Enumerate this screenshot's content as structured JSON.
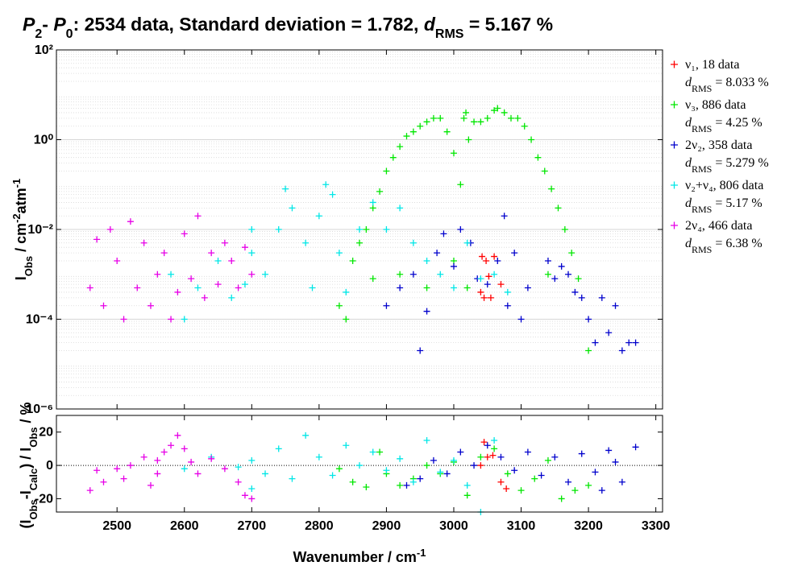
{
  "chart_data": [
    {
      "type": "scatter",
      "title_parts": [
        "P",
        "2",
        "- ",
        "P",
        "0",
        ": 2534 data, Standard deviation = 1.782, ",
        "d",
        "RMS",
        " = 5.167 %"
      ],
      "ylabel_parts": [
        "I",
        "Obs",
        " / cm",
        "-2",
        "atm",
        "-1"
      ],
      "log_y": true,
      "grid": true,
      "legend": "outside-right",
      "xlim": [
        2410,
        3310
      ],
      "xticks": [
        2500,
        2600,
        2700,
        2800,
        2900,
        3000,
        3100,
        3200,
        3300
      ],
      "ylim": [
        1e-06,
        100
      ],
      "yticks": [
        {
          "value": 1e-06,
          "label": "10⁻⁶"
        },
        {
          "value": 0.0001,
          "label": "10⁻⁴"
        },
        {
          "value": 0.01,
          "label": "10⁻²"
        },
        {
          "value": 1,
          "label": "10⁰"
        },
        {
          "value": 100,
          "label": "10²"
        }
      ],
      "series": [
        {
          "name": "ν₁, 18 data",
          "rms_parts": [
            "d",
            "RMS",
            " = 8.033 %"
          ],
          "color": "#ff0000",
          "x": [
            3042,
            3048,
            3045,
            3055,
            3052,
            3060,
            3070,
            3040
          ],
          "values": [
            0.0025,
            0.002,
            0.0003,
            0.0003,
            0.0009,
            0.0025,
            0.0006,
            0.0004
          ]
        },
        {
          "name": "ν₃, 886 data",
          "rms_parts": [
            "d",
            "RMS",
            " = 4.25 %"
          ],
          "color": "#00e600",
          "x": [
            2830,
            2840,
            2850,
            2860,
            2870,
            2880,
            2890,
            2900,
            2910,
            2920,
            2930,
            2940,
            2950,
            2960,
            2970,
            2980,
            2990,
            3000,
            3010,
            3015,
            3018,
            3022,
            3030,
            3040,
            3050,
            3060,
            3065,
            3075,
            3085,
            3095,
            3105,
            3115,
            3125,
            3135,
            3145,
            3155,
            3165,
            3175,
            3185,
            3200,
            2920,
            2960,
            3000,
            3020,
            2880,
            3140
          ],
          "values": [
            0.0002,
            0.0001,
            0.002,
            0.005,
            0.01,
            0.03,
            0.07,
            0.2,
            0.4,
            0.7,
            1.2,
            1.5,
            2,
            2.5,
            3,
            3,
            1.5,
            0.5,
            0.1,
            3,
            4,
            1,
            2.5,
            2.5,
            3,
            4.5,
            5,
            4,
            3,
            3,
            2,
            1,
            0.4,
            0.2,
            0.08,
            0.03,
            0.01,
            0.003,
            0.0008,
            2e-05,
            0.001,
            0.0005,
            0.002,
            0.0005,
            0.0008,
            0.001
          ]
        },
        {
          "name": "2ν₂, 358 data",
          "rms_parts": [
            "d",
            "RMS",
            " = 5.279 %"
          ],
          "color": "#0000cc",
          "x": [
            2900,
            2920,
            2940,
            2950,
            2960,
            2975,
            2985,
            3000,
            3010,
            3025,
            3035,
            3050,
            3065,
            3075,
            3080,
            3090,
            3100,
            3140,
            3160,
            3170,
            3180,
            3190,
            3200,
            3210,
            3220,
            3230,
            3240,
            3250,
            3260,
            3270,
            3110,
            3150
          ],
          "values": [
            0.0002,
            0.0005,
            0.001,
            2e-05,
            0.00015,
            0.003,
            0.008,
            0.0015,
            0.01,
            0.005,
            0.0008,
            0.0006,
            0.002,
            0.02,
            0.0002,
            0.003,
            0.0001,
            0.002,
            0.0015,
            0.001,
            0.0004,
            0.0003,
            0.0001,
            3e-05,
            0.0003,
            5e-05,
            0.0002,
            2e-05,
            3e-05,
            3e-05,
            0.0005,
            0.0008
          ]
        },
        {
          "name": "ν₂+ν₄, 806 data",
          "rms_parts": [
            "d",
            "RMS",
            " = 5.17 %"
          ],
          "color": "#00e6e6",
          "x": [
            2600,
            2620,
            2650,
            2670,
            2690,
            2700,
            2720,
            2740,
            2750,
            2760,
            2780,
            2790,
            2800,
            2810,
            2820,
            2830,
            2840,
            2860,
            2880,
            2900,
            2920,
            2940,
            2960,
            2980,
            3000,
            3020,
            3040,
            3060,
            3080,
            2580,
            2700
          ],
          "values": [
            0.0001,
            0.0005,
            0.002,
            0.0003,
            0.0006,
            0.003,
            0.001,
            0.01,
            0.08,
            0.03,
            0.005,
            0.0005,
            0.02,
            0.1,
            0.06,
            0.003,
            0.0004,
            0.01,
            0.04,
            0.01,
            0.03,
            0.005,
            0.002,
            0.001,
            0.0005,
            0.005,
            0.0008,
            0.001,
            0.0004,
            0.001,
            0.01
          ]
        },
        {
          "name": "2ν₄, 466 data",
          "rms_parts": [
            "d",
            "RMS",
            " = 6.38 %"
          ],
          "color": "#e600e6",
          "x": [
            2460,
            2470,
            2480,
            2490,
            2500,
            2510,
            2520,
            2530,
            2540,
            2550,
            2560,
            2570,
            2580,
            2590,
            2600,
            2610,
            2620,
            2630,
            2640,
            2650,
            2660,
            2670,
            2680,
            2690,
            2700
          ],
          "values": [
            0.0005,
            0.006,
            0.0002,
            0.01,
            0.002,
            0.0001,
            0.015,
            0.0005,
            0.005,
            0.0002,
            0.001,
            0.003,
            0.0001,
            0.0004,
            0.008,
            0.0008,
            0.02,
            0.0003,
            0.003,
            0.0006,
            0.005,
            0.002,
            0.0005,
            0.004,
            0.001
          ]
        }
      ]
    },
    {
      "type": "scatter",
      "ylabel_parts": [
        "(I",
        "Obs",
        "-I",
        "Calc",
        ") / I",
        "Obs",
        " /  %"
      ],
      "xlabel_parts": [
        "Wavenumber / cm",
        "-1"
      ],
      "zero_line": true,
      "xlim": [
        2410,
        3310
      ],
      "xticks": [
        2500,
        2600,
        2700,
        2800,
        2900,
        3000,
        3100,
        3200,
        3300
      ],
      "ylim": [
        -28,
        30
      ],
      "yticks": [
        -20,
        0,
        20
      ],
      "series": [
        {
          "color": "#ff0000",
          "x": [
            3045,
            3050,
            3058,
            3070,
            3078,
            3040
          ],
          "values": [
            14,
            5,
            6,
            -10,
            -14,
            0
          ]
        },
        {
          "color": "#00e600",
          "x": [
            2830,
            2850,
            2870,
            2890,
            2900,
            2920,
            2940,
            2960,
            2980,
            3000,
            3020,
            3040,
            3060,
            3080,
            3100,
            3120,
            3140,
            3160,
            3180,
            3200
          ],
          "values": [
            -2,
            -10,
            -13,
            8,
            -5,
            -12,
            -8,
            0,
            -5,
            2,
            -18,
            5,
            10,
            -5,
            -15,
            -8,
            3,
            -20,
            -15,
            -12
          ]
        },
        {
          "color": "#0000cc",
          "x": [
            2930,
            2950,
            2970,
            2990,
            3010,
            3030,
            3050,
            3070,
            3090,
            3110,
            3130,
            3150,
            3170,
            3190,
            3210,
            3230,
            3250,
            3270,
            3240,
            3220
          ],
          "values": [
            -12,
            -8,
            3,
            -5,
            8,
            0,
            12,
            5,
            -3,
            8,
            -6,
            5,
            -10,
            7,
            -4,
            9,
            -10,
            11,
            2,
            -15
          ]
        },
        {
          "color": "#00e6e6",
          "x": [
            2600,
            2640,
            2680,
            2700,
            2720,
            2740,
            2760,
            2780,
            2800,
            2820,
            2840,
            2860,
            2880,
            2900,
            2920,
            2940,
            2960,
            2980,
            3000,
            3020,
            3040,
            3060,
            2700
          ],
          "values": [
            -2,
            5,
            -1,
            3,
            -5,
            10,
            -8,
            18,
            5,
            -6,
            12,
            0,
            8,
            -3,
            4,
            -10,
            15,
            -4,
            3,
            -12,
            -28,
            15,
            -14
          ]
        },
        {
          "color": "#e600e6",
          "x": [
            2460,
            2470,
            2480,
            2500,
            2510,
            2520,
            2540,
            2550,
            2560,
            2570,
            2580,
            2590,
            2600,
            2610,
            2620,
            2640,
            2660,
            2680,
            2690,
            2700,
            2560
          ],
          "values": [
            -15,
            -3,
            -10,
            -2,
            -8,
            0,
            5,
            -12,
            3,
            8,
            12,
            18,
            10,
            2,
            -5,
            4,
            -2,
            -10,
            -18,
            -20,
            -5
          ]
        }
      ]
    }
  ]
}
